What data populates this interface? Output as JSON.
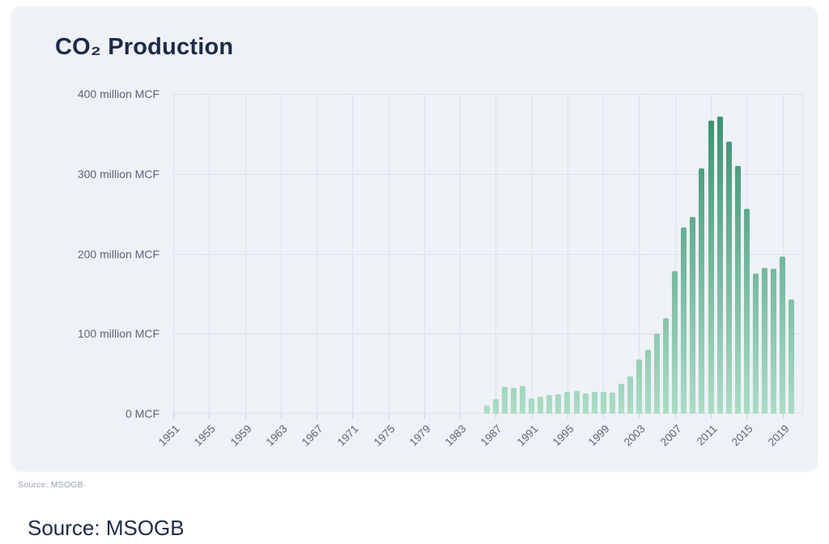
{
  "card": {
    "source_note": "Source: MSOGB"
  },
  "caption": {
    "text": "Source: MSOGB"
  },
  "chart_data": {
    "type": "bar",
    "title": "CO₂ Production",
    "unit": "million MCF",
    "x": [
      1986,
      1987,
      1988,
      1989,
      1990,
      1991,
      1992,
      1993,
      1994,
      1995,
      1996,
      1997,
      1998,
      1999,
      2000,
      2001,
      2002,
      2003,
      2004,
      2005,
      2006,
      2007,
      2008,
      2009,
      2010,
      2011,
      2012,
      2013,
      2014,
      2015,
      2016,
      2017,
      2018,
      2019,
      2020
    ],
    "values": [
      10,
      18,
      33,
      32,
      34,
      19,
      21,
      23,
      24,
      27,
      28,
      25,
      27,
      27,
      26,
      37,
      47,
      68,
      80,
      100,
      120,
      178,
      233,
      246,
      307,
      367,
      372,
      340,
      310,
      256,
      175,
      182,
      181,
      196,
      143
    ],
    "x_ticks": [
      1951,
      1955,
      1959,
      1963,
      1967,
      1971,
      1975,
      1979,
      1983,
      1987,
      1991,
      1995,
      1999,
      2003,
      2007,
      2011,
      2015,
      2019
    ],
    "y_tick_values": [
      400,
      300,
      200,
      100,
      0
    ],
    "y_tick_labels": [
      "400 million MCF",
      "300 million MCF",
      "200 million MCF",
      "100 million MCF",
      "0 MCF"
    ],
    "ylim": [
      0,
      400
    ],
    "x_domain": [
      1951,
      2021.3
    ],
    "grid": true,
    "legend": "none",
    "colors": {
      "page_bg": "#ffffff",
      "card_bg": "#eef1f5",
      "grid": "#dce1e9",
      "tick": "#c9cfd9",
      "bar_top": "#338c6e",
      "bar_bottom": "#abdcc6",
      "title_text": "#1d2b4a",
      "axis_text": "#5b6478",
      "source_small_text": "#9aa3b2",
      "source_large_text": "#1d2b4a"
    }
  }
}
